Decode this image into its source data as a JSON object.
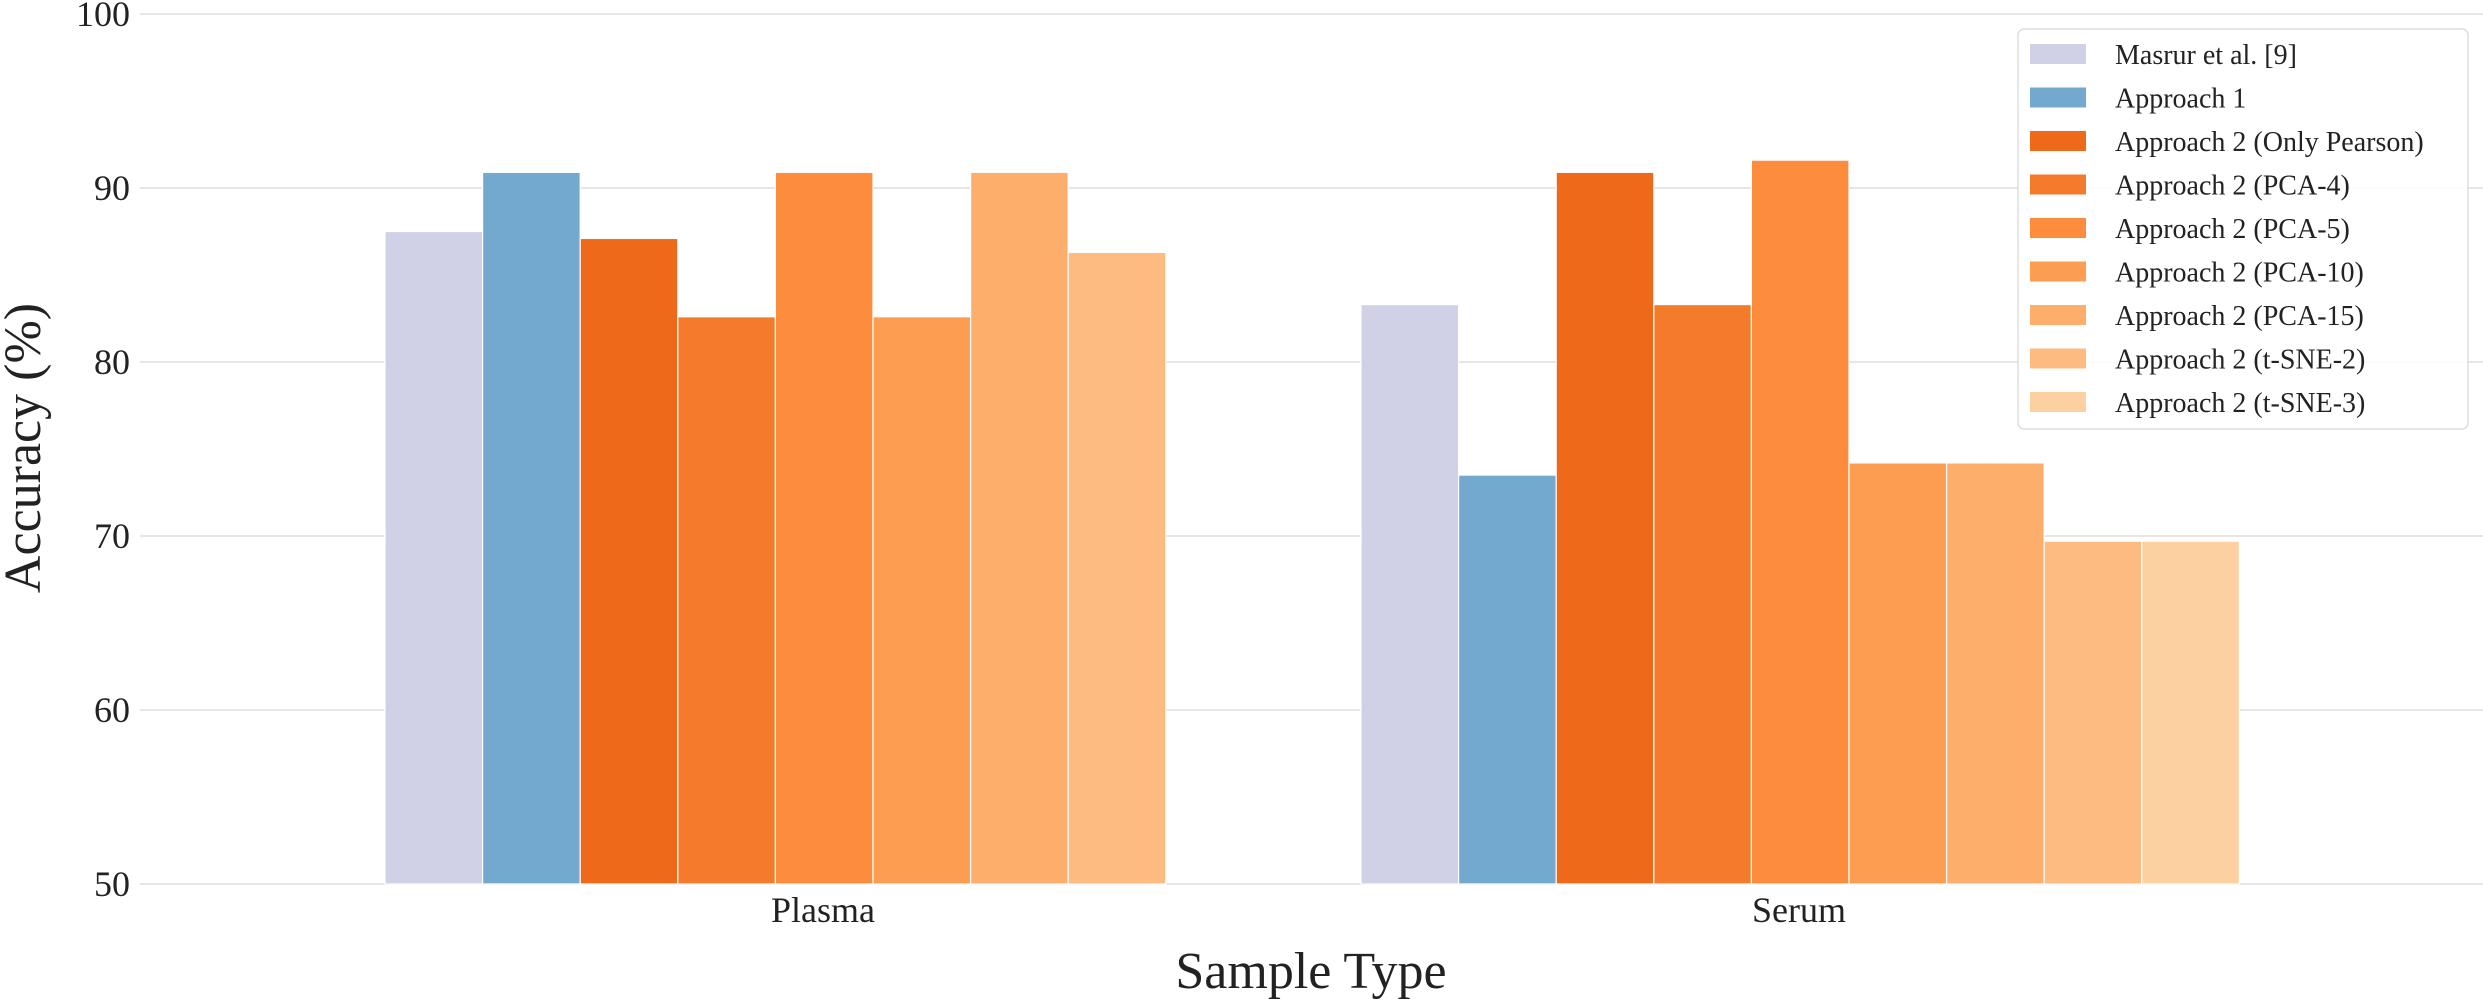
{
  "chart_data": {
    "type": "bar",
    "title": "",
    "xlabel": "Sample Type",
    "ylabel": "Accuracy (%)",
    "ylim": [
      50,
      100
    ],
    "yticks": [
      50,
      60,
      70,
      80,
      90,
      100
    ],
    "grid": true,
    "legend_position": "top-right",
    "categories": [
      "Plasma",
      "Serum"
    ],
    "series": [
      {
        "name": "Masrur et al. [9]",
        "color": "#d0d1e6",
        "values": [
          87.5,
          83.3
        ]
      },
      {
        "name": "Approach 1",
        "color": "#74a9cf",
        "values": [
          90.9,
          73.5
        ]
      },
      {
        "name": "Approach 2 (Only Pearson)",
        "color": "#ee6a1a",
        "values": [
          87.1,
          90.9
        ]
      },
      {
        "name": "Approach 2 (PCA-4)",
        "color": "#f47b2b",
        "values": [
          82.6,
          83.3
        ]
      },
      {
        "name": "Approach 2 (PCA-5)",
        "color": "#fd8d3c",
        "values": [
          90.9,
          91.6
        ]
      },
      {
        "name": "Approach 2 (PCA-10)",
        "color": "#fd9d51",
        "values": [
          82.6,
          74.2
        ]
      },
      {
        "name": "Approach 2 (PCA-15)",
        "color": "#fdae6b",
        "values": [
          90.9,
          74.2
        ]
      },
      {
        "name": "Approach 2 (t-SNE-2)",
        "color": "#fdbb80",
        "values": [
          86.3,
          69.7
        ]
      },
      {
        "name": "Approach 2 (t-SNE-3)",
        "color": "#fdd0a2",
        "values": [
          null,
          69.7
        ]
      }
    ]
  }
}
